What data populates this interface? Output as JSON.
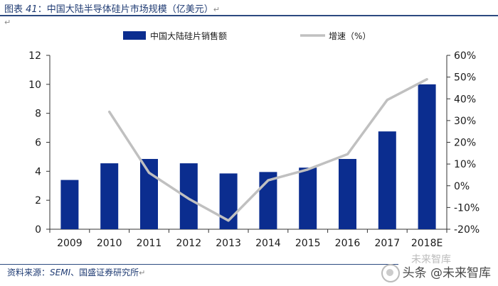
{
  "caption": {
    "prefix": "图表",
    "number": "41",
    "text": "：中国大陆半导体硅片市场规模（亿美元）",
    "return_mark": "↵"
  },
  "source": {
    "prefix": "资料来源：",
    "italic_part": "SEMI",
    "rest": "、国盛证券研究所",
    "return_mark": "↵"
  },
  "watermark": {
    "top_text": "未来智库",
    "main_text": "头条 @未来智库"
  },
  "colors": {
    "bar": "#0b2d8f",
    "line": "#c0c0c0",
    "axis": "#333333",
    "text": "#1a1a1a"
  },
  "chart_data": {
    "type": "bar+line",
    "title": "",
    "categories": [
      "2009",
      "2010",
      "2011",
      "2012",
      "2013",
      "2014",
      "2015",
      "2016",
      "2017",
      "2018E"
    ],
    "series": [
      {
        "name": "中国大陆硅片销售额",
        "type": "bar",
        "axis": "left",
        "values": [
          3.4,
          4.55,
          4.85,
          4.55,
          3.85,
          3.95,
          4.25,
          4.85,
          6.75,
          10.0
        ]
      },
      {
        "name": "增速（%）",
        "type": "line",
        "axis": "right",
        "values": [
          null,
          34,
          6,
          -6,
          -16,
          2.5,
          7.5,
          14.5,
          39.5,
          49
        ]
      }
    ],
    "y_left": {
      "lim": [
        0,
        12
      ],
      "ticks": [
        "0",
        "2",
        "4",
        "6",
        "8",
        "10",
        "12"
      ]
    },
    "y_right": {
      "lim": [
        -20,
        60
      ],
      "ticks": [
        "-20%",
        "-10%",
        "0%",
        "10%",
        "20%",
        "30%",
        "40%",
        "50%",
        "60%"
      ]
    },
    "legend": "top-center",
    "grid": false
  }
}
